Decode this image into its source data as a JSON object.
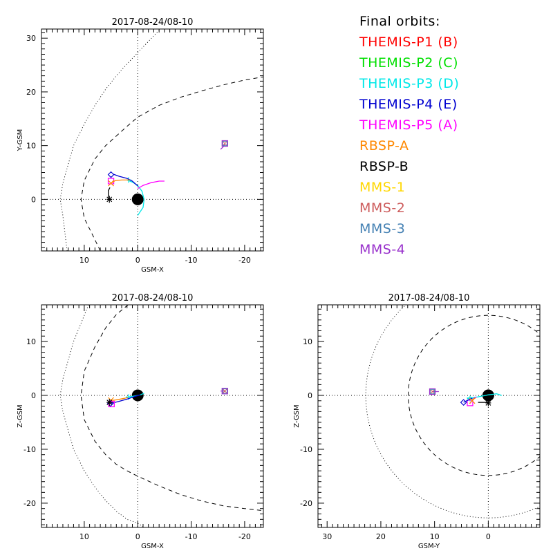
{
  "legend": {
    "title": "Final orbits:",
    "items": [
      {
        "label": "THEMIS-P1 (B)",
        "color": "#ff0000"
      },
      {
        "label": "THEMIS-P2 (C)",
        "color": "#00e000"
      },
      {
        "label": "THEMIS-P3 (D)",
        "color": "#00e8e8"
      },
      {
        "label": "THEMIS-P4 (E)",
        "color": "#0000d0"
      },
      {
        "label": "THEMIS-P5 (A)",
        "color": "#ff00ff"
      },
      {
        "label": "RBSP-A",
        "color": "#ff8800"
      },
      {
        "label": "RBSP-B",
        "color": "#000000"
      },
      {
        "label": "MMS-1",
        "color": "#ffd700"
      },
      {
        "label": "MMS-2",
        "color": "#cd5c5c"
      },
      {
        "label": "MMS-3",
        "color": "#4682b4"
      },
      {
        "label": "MMS-4",
        "color": "#9932cc"
      }
    ]
  },
  "chart_data": [
    {
      "type": "line",
      "panel": "top-left",
      "title": "2017-08-24/08-10",
      "xlabel": "GSM-X",
      "ylabel": "Y-GSM",
      "xlim": [
        18,
        -23.5
      ],
      "ylim": [
        31.7,
        -9.6
      ],
      "xticks": [
        10,
        0,
        -10,
        -20
      ],
      "yticks": [
        0,
        10,
        20,
        30
      ],
      "earth": {
        "x": 0,
        "y": 0,
        "r": 1.1
      },
      "magnetopause": [
        [
          7.0,
          -9.6
        ],
        [
          8,
          -7.5
        ],
        [
          10,
          -3.5
        ],
        [
          10.6,
          0
        ],
        [
          10,
          3.5
        ],
        [
          8,
          7.5
        ],
        [
          6,
          10
        ],
        [
          4,
          11.8
        ],
        [
          2,
          13.6
        ],
        [
          0,
          15.3
        ],
        [
          -4,
          17.5
        ],
        [
          -8,
          19
        ],
        [
          -12,
          20.2
        ],
        [
          -16,
          21.3
        ],
        [
          -20,
          22.2
        ],
        [
          -23.5,
          22.8
        ]
      ],
      "bowshock": [
        [
          13.2,
          -9.6
        ],
        [
          14,
          -3
        ],
        [
          14.5,
          0
        ],
        [
          14,
          3
        ],
        [
          12,
          10
        ],
        [
          10,
          14
        ],
        [
          8,
          17.5
        ],
        [
          6,
          20.5
        ],
        [
          4,
          23
        ],
        [
          2,
          25.2
        ],
        [
          0,
          27.3
        ],
        [
          -2,
          29.4
        ],
        [
          -4.2,
          31.7
        ]
      ],
      "series": [
        {
          "name": "THEMIS-P3 (D)",
          "color": "#00e8e8",
          "points": [
            [
              0,
              -3
            ],
            [
              -1,
              -1.5
            ],
            [
              -1.2,
              0
            ],
            [
              -0.8,
              1.5
            ],
            [
              0,
              2.6
            ],
            [
              1,
              3.2
            ],
            [
              2,
              3.6
            ]
          ],
          "marker": "plus",
          "marker_at": [
            1.7,
            3.6
          ]
        },
        {
          "name": "THEMIS-P5 (A)",
          "color": "#ff00ff",
          "points": [
            [
              0,
              2.0
            ],
            [
              -1,
              2.6
            ],
            [
              -2.5,
              3.1
            ],
            [
              -4,
              3.4
            ],
            [
              -5,
              3.4
            ]
          ],
          "marker": "square",
          "marker_at": [
            5,
            3.4
          ]
        },
        {
          "name": "THEMIS-P4 (E)",
          "color": "#0000d0",
          "points": [
            [
              0,
              2.5
            ],
            [
              1,
              3.4
            ],
            [
              2,
              3.9
            ],
            [
              3.5,
              4.3
            ],
            [
              4.6,
              4.7
            ]
          ],
          "marker": "diamond",
          "marker_at": [
            5,
            4.6
          ]
        },
        {
          "name": "RBSP-A",
          "color": "#ff8800",
          "points": [
            [
              5,
              3.0
            ],
            [
              4.2,
              3.5
            ],
            [
              3,
              3.6
            ],
            [
              1.5,
              3.6
            ]
          ],
          "marker": "x",
          "marker_at": [
            5,
            3.0
          ]
        },
        {
          "name": "RBSP-B",
          "color": "#000000",
          "points": [
            [
              5.3,
              0
            ],
            [
              5.5,
              0.8
            ],
            [
              5.5,
              1.6
            ],
            [
              5.2,
              2.2
            ]
          ],
          "marker": "asterisk",
          "marker_at": [
            5.3,
            0
          ]
        },
        {
          "name": "MMS",
          "color": "#9932cc",
          "points": [
            [
              -15.5,
              9.3
            ],
            [
              -16.0,
              9.8
            ],
            [
              -16.3,
              10.3
            ]
          ],
          "marker": "square",
          "marker_at": [
            -16.3,
            10.4
          ]
        }
      ]
    },
    {
      "type": "line",
      "panel": "bottom-left",
      "title": "2017-08-24/08-10",
      "xlabel": "GSM-X",
      "ylabel": "Z-GSM",
      "xlim": [
        18,
        -23.5
      ],
      "ylim": [
        16.8,
        -24.5
      ],
      "xticks": [
        10,
        0,
        -10,
        -20
      ],
      "yticks": [
        10,
        0,
        -10,
        -20
      ],
      "earth": {
        "x": 0,
        "y": 0,
        "r": 1.1
      },
      "magnetopause": [
        [
          1.8,
          16.8
        ],
        [
          0,
          15.6
        ],
        [
          -1.8,
          16.8
        ]
      ],
      "magnetopause_full": [
        [
          1.8,
          16.8
        ],
        [
          4,
          15
        ],
        [
          6,
          12.5
        ],
        [
          8,
          9
        ],
        [
          10,
          4.5
        ],
        [
          10.6,
          0
        ],
        [
          10,
          -4.5
        ],
        [
          8,
          -8.5
        ],
        [
          6,
          -11
        ],
        [
          4,
          -12.8
        ],
        [
          2,
          -14
        ],
        [
          0,
          -15
        ],
        [
          -4,
          -16.8
        ],
        [
          -8,
          -18.4
        ],
        [
          -12,
          -19.6
        ],
        [
          -16,
          -20.5
        ],
        [
          -20,
          -21
        ],
        [
          -23.5,
          -21.4
        ]
      ],
      "bowshock": [
        [
          9.2,
          16.8
        ],
        [
          12,
          10
        ],
        [
          14,
          3
        ],
        [
          14.5,
          0
        ],
        [
          14,
          -3
        ],
        [
          12,
          -10
        ],
        [
          10,
          -14
        ],
        [
          8,
          -17
        ],
        [
          6,
          -19.5
        ],
        [
          4,
          -21.5
        ],
        [
          2,
          -23
        ],
        [
          0,
          -23.7
        ],
        [
          -1.2,
          -24.5
        ]
      ],
      "series": [
        {
          "name": "THEMIS-P3 (D)",
          "color": "#00e8e8",
          "points": [
            [
              1.7,
              -0.3
            ],
            [
              0.5,
              -0.1
            ],
            [
              -0.5,
              0.1
            ],
            [
              -1.2,
              0.4
            ]
          ],
          "marker": "plus",
          "marker_at": [
            1.7,
            -0.3
          ]
        },
        {
          "name": "RBSP-A",
          "color": "#ff8800",
          "points": [
            [
              5,
              -0.9
            ],
            [
              4.5,
              -0.9
            ],
            [
              3.8,
              -0.8
            ],
            [
              2.8,
              -0.6
            ],
            [
              1.8,
              -0.4
            ]
          ],
          "marker": "x",
          "marker_at": [
            5,
            -0.9
          ]
        },
        {
          "name": "THEMIS-P4 (E)",
          "color": "#0000d0",
          "points": [
            [
              5.1,
              -1.5
            ],
            [
              3.5,
              -1.1
            ],
            [
              2,
              -0.7
            ],
            [
              0.5,
              -0.2
            ],
            [
              -0.5,
              0.1
            ]
          ],
          "marker": "diamond",
          "marker_at": [
            5.1,
            -1.5
          ]
        },
        {
          "name": "THEMIS-P5 (A)",
          "color": "#ff00ff",
          "points": [
            [
              4.9,
              -1.5
            ]
          ],
          "marker": "square",
          "marker_at": [
            4.9,
            -1.6
          ]
        },
        {
          "name": "RBSP-B",
          "color": "#000000",
          "points": [
            [
              5.3,
              -1.3
            ]
          ],
          "marker": "asterisk",
          "marker_at": [
            5.3,
            -1.3
          ]
        },
        {
          "name": "MMS",
          "color": "#9932cc",
          "points": [
            [
              -15.5,
              0.8
            ],
            [
              -16.3,
              0.8
            ]
          ],
          "marker": "square",
          "marker_at": [
            -16.3,
            0.8
          ]
        }
      ]
    },
    {
      "type": "line",
      "panel": "bottom-right",
      "title": "2017-08-24/08-10",
      "xlabel": "GSM-Y",
      "ylabel": "Z-GSM",
      "xlim": [
        31.7,
        -9.6
      ],
      "ylim": [
        16.8,
        -24.5
      ],
      "xticks": [
        30,
        20,
        10,
        0
      ],
      "yticks": [
        10,
        0,
        -10,
        -20
      ],
      "earth": {
        "x": 0,
        "y": 0,
        "r": 1.1
      },
      "magnetopause_circle": {
        "cx": 0,
        "cy": 0,
        "r": 14.9
      },
      "bowshock_circle": {
        "cx": 0,
        "cy": 0,
        "r": 22.8
      },
      "series": [
        {
          "name": "THEMIS-P3 (D)",
          "color": "#00e8e8",
          "points": [
            [
              4,
              -0.5
            ],
            [
              2,
              -0.3
            ],
            [
              0,
              0.1
            ],
            [
              -1,
              0.2
            ],
            [
              -1.5,
              0.3
            ],
            [
              -2.5,
              0
            ]
          ],
          "marker": "plus",
          "marker_at": [
            3.4,
            -0.6
          ]
        },
        {
          "name": "THEMIS-P5 (A)",
          "color": "#ff00ff",
          "points": [
            [
              3.4,
              -1.5
            ],
            [
              2.8,
              -0.6
            ],
            [
              2.2,
              -0.3
            ]
          ],
          "marker": "square",
          "marker_at": [
            3.4,
            -1.4
          ]
        },
        {
          "name": "THEMIS-P4 (E)",
          "color": "#0000d0",
          "points": [
            [
              4.6,
              -1.3
            ],
            [
              3.8,
              -0.9
            ],
            [
              3.0,
              -0.5
            ]
          ],
          "marker": "diamond",
          "marker_at": [
            4.6,
            -1.3
          ]
        },
        {
          "name": "RBSP-A",
          "color": "#ff8800",
          "points": [
            [
              3.2,
              -0.9
            ],
            [
              2.4,
              -0.5
            ]
          ],
          "marker": "x",
          "marker_at": [
            3.0,
            -1.0
          ]
        },
        {
          "name": "RBSP-B",
          "color": "#000000",
          "points": [
            [
              1.9,
              -1.3
            ],
            [
              1,
              -1.3
            ],
            [
              0,
              -1.3
            ]
          ],
          "marker": "asterisk",
          "marker_at": [
            0,
            -1.4
          ]
        },
        {
          "name": "MMS",
          "color": "#9932cc",
          "points": [
            [
              10.4,
              0.7
            ],
            [
              9.2,
              0.7
            ]
          ],
          "marker": "square",
          "marker_at": [
            10.4,
            0.7
          ]
        }
      ]
    }
  ]
}
